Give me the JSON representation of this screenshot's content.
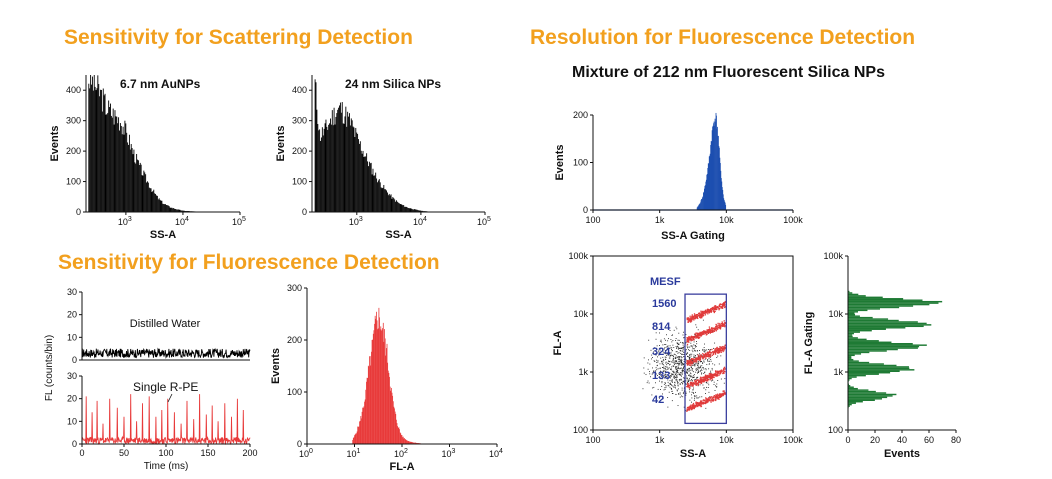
{
  "headings": {
    "scattering": "Sensitivity for Scattering Detection",
    "fluorescence": "Sensitivity for Fluorescence Detection",
    "resolution": "Resolution for Fluorescence Detection",
    "mixture": "Mixture of 212 nm Fluorescent Silica NPs"
  },
  "chart_data": [
    {
      "id": "aunp",
      "type": "bar",
      "annotation": "6.7 nm AuNPs",
      "xlabel": "SS-A",
      "ylabel": "Events",
      "xscale": "log",
      "xlim": [
        200,
        100000
      ],
      "ylim": [
        0,
        450
      ],
      "xticks": [
        {
          "v": 1000,
          "b": "10",
          "e": "3"
        },
        {
          "v": 10000,
          "b": "10",
          "e": "4"
        },
        {
          "v": 100000,
          "b": "10",
          "e": "5"
        }
      ],
      "yticks": [
        0,
        100,
        200,
        300,
        400
      ],
      "color": "#000000",
      "x": [
        220,
        280,
        350,
        450,
        600,
        800,
        1000,
        1300,
        1700,
        2200,
        2800,
        3600,
        4500,
        6000,
        8000,
        10000,
        15000,
        25000
      ],
      "y": [
        440,
        420,
        390,
        345,
        320,
        300,
        260,
        200,
        150,
        110,
        75,
        45,
        28,
        15,
        8,
        4,
        2,
        0
      ]
    },
    {
      "id": "silica24",
      "type": "bar",
      "annotation": "24 nm Silica NPs",
      "xlabel": "SS-A",
      "ylabel": "Events",
      "xscale": "log",
      "xlim": [
        200,
        100000
      ],
      "ylim": [
        0,
        450
      ],
      "xticks": [
        {
          "v": 1000,
          "b": "10",
          "e": "3"
        },
        {
          "v": 10000,
          "b": "10",
          "e": "4"
        },
        {
          "v": 100000,
          "b": "10",
          "e": "5"
        }
      ],
      "yticks": [
        0,
        100,
        200,
        300,
        400
      ],
      "color": "#000000",
      "x": [
        220,
        260,
        320,
        380,
        450,
        550,
        650,
        800,
        1000,
        1300,
        1700,
        2200,
        2800,
        3600,
        4500,
        6000,
        8000,
        10000,
        15000
      ],
      "y": [
        420,
        250,
        270,
        300,
        325,
        340,
        320,
        290,
        240,
        190,
        140,
        100,
        70,
        45,
        28,
        15,
        8,
        4,
        0
      ]
    },
    {
      "id": "water",
      "type": "line",
      "annotation": "Distilled Water",
      "xlim": [
        0,
        200
      ],
      "ylim": [
        0,
        30
      ],
      "yticks": [
        0,
        10,
        20,
        30
      ],
      "color": "#000000",
      "baseline": [
        1,
        5
      ]
    },
    {
      "id": "rpe",
      "type": "line",
      "annotation": "Single R-PE",
      "xlabel": "Time (ms)",
      "ylabel": "FL (counts/bin)",
      "xlim": [
        0,
        200
      ],
      "ylim": [
        0,
        30
      ],
      "xticks": [
        0,
        50,
        100,
        150,
        200
      ],
      "yticks": [
        0,
        10,
        20,
        30
      ],
      "color": "#e83a3a",
      "baseline": [
        0,
        3
      ],
      "x": [
        5,
        12,
        18,
        25,
        33,
        42,
        50,
        58,
        65,
        72,
        80,
        88,
        95,
        102,
        110,
        118,
        125,
        133,
        140,
        148,
        155,
        162,
        170,
        178,
        185,
        192
      ],
      "y": [
        21,
        14,
        19,
        9,
        20,
        16,
        12,
        22,
        10,
        18,
        21,
        12,
        15,
        20,
        14,
        9,
        19,
        11,
        22,
        13,
        17,
        10,
        18,
        12,
        20,
        15
      ]
    },
    {
      "id": "fla",
      "type": "bar",
      "xlabel": "FL-A",
      "ylabel": "Events",
      "xscale": "log",
      "xlim": [
        1,
        10000
      ],
      "ylim": [
        0,
        300
      ],
      "xticks": [
        {
          "v": 1,
          "b": "10",
          "e": "0"
        },
        {
          "v": 10,
          "b": "10",
          "e": "1"
        },
        {
          "v": 100,
          "b": "10",
          "e": "2"
        },
        {
          "v": 1000,
          "b": "10",
          "e": "3"
        },
        {
          "v": 10000,
          "b": "10",
          "e": "4"
        }
      ],
      "yticks": [
        0,
        100,
        200,
        300
      ],
      "color": "#e83a3a",
      "x": [
        9,
        11,
        13,
        15,
        17,
        19,
        22,
        25,
        28,
        31,
        34,
        38,
        43,
        48,
        54,
        60,
        68,
        78,
        90,
        105,
        130,
        170,
        250
      ],
      "y": [
        8,
        25,
        45,
        70,
        100,
        135,
        170,
        205,
        235,
        245,
        238,
        220,
        200,
        170,
        130,
        95,
        65,
        40,
        22,
        12,
        6,
        3,
        1
      ]
    },
    {
      "id": "ssa-gating",
      "type": "bar",
      "xlabel": "SS-A Gating",
      "ylabel": "Events",
      "xscale": "log",
      "xlim": [
        100,
        100000
      ],
      "ylim": [
        0,
        200
      ],
      "xticks": [
        {
          "v": 100,
          "t": "100"
        },
        {
          "v": 1000,
          "t": "1k"
        },
        {
          "v": 10000,
          "t": "10k"
        },
        {
          "v": 100000,
          "t": "100k"
        }
      ],
      "yticks": [
        0,
        100,
        200
      ],
      "color": "#1d4fb0",
      "x": [
        3600,
        4000,
        4400,
        4800,
        5200,
        5600,
        6000,
        6400,
        6800,
        7200,
        7600,
        8000,
        8500,
        9000,
        9800
      ],
      "y": [
        5,
        15,
        30,
        55,
        85,
        120,
        160,
        185,
        198,
        180,
        140,
        95,
        55,
        25,
        8
      ]
    },
    {
      "id": "scatter",
      "type": "scatter",
      "xlabel": "SS-A",
      "ylabel": "FL-A",
      "xscale": "log",
      "yscale": "log",
      "xlim": [
        100,
        100000
      ],
      "ylim": [
        100,
        100000
      ],
      "xticks": [
        {
          "v": 100,
          "t": "100"
        },
        {
          "v": 1000,
          "t": "1k"
        },
        {
          "v": 10000,
          "t": "10k"
        },
        {
          "v": 100000,
          "t": "100k"
        }
      ],
      "yticks": [
        {
          "v": 100,
          "t": "100"
        },
        {
          "v": 1000,
          "t": "1k"
        },
        {
          "v": 10000,
          "t": "10k"
        },
        {
          "v": 100000,
          "t": "100k"
        }
      ],
      "color": "#e03a3a",
      "gate": {
        "x": [
          2400,
          10000
        ],
        "y": [
          130,
          22000
        ]
      },
      "legend_title": "MESF",
      "populations": [
        {
          "label": "1560",
          "fl": 11000
        },
        {
          "label": "814",
          "fl": 5000
        },
        {
          "label": "324",
          "fl": 2000
        },
        {
          "label": "133",
          "fl": 800
        },
        {
          "label": "42",
          "fl": 320
        }
      ]
    },
    {
      "id": "fla-gating",
      "type": "bar",
      "orientation": "horizontal",
      "xlabel": "Events",
      "ylabel": "FL-A Gating",
      "yscale": "log",
      "ylim": [
        100,
        100000
      ],
      "xlim": [
        0,
        80
      ],
      "xticks": [
        0,
        20,
        40,
        60,
        80
      ],
      "yticks": [
        {
          "v": 100,
          "t": "100"
        },
        {
          "v": 1000,
          "t": "1k"
        },
        {
          "v": 10000,
          "t": "10k"
        },
        {
          "v": 100000,
          "t": "100k"
        }
      ],
      "color": "#1e7a34",
      "peaks": [
        {
          "center": 15000,
          "max": 68
        },
        {
          "center": 6500,
          "max": 60
        },
        {
          "center": 2700,
          "max": 55
        },
        {
          "center": 1100,
          "max": 50
        },
        {
          "center": 380,
          "max": 35
        }
      ]
    }
  ]
}
